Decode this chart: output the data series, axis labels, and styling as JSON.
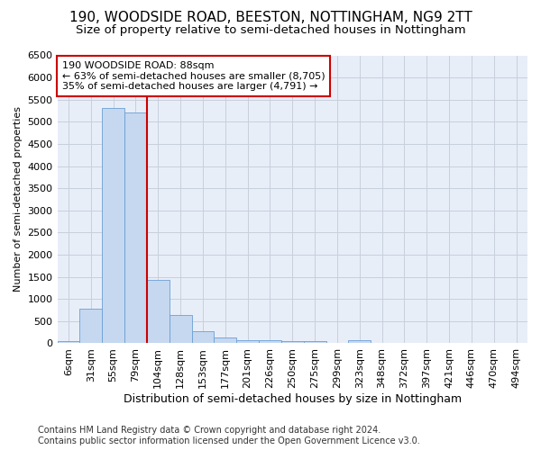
{
  "title": "190, WOODSIDE ROAD, BEESTON, NOTTINGHAM, NG9 2TT",
  "subtitle": "Size of property relative to semi-detached houses in Nottingham",
  "xlabel": "Distribution of semi-detached houses by size in Nottingham",
  "ylabel": "Number of semi-detached properties",
  "categories": [
    "6sqm",
    "31sqm",
    "55sqm",
    "79sqm",
    "104sqm",
    "128sqm",
    "153sqm",
    "177sqm",
    "201sqm",
    "226sqm",
    "250sqm",
    "275sqm",
    "299sqm",
    "323sqm",
    "348sqm",
    "372sqm",
    "397sqm",
    "421sqm",
    "446sqm",
    "470sqm",
    "494sqm"
  ],
  "values": [
    50,
    790,
    5310,
    5200,
    1430,
    630,
    265,
    130,
    80,
    65,
    55,
    50,
    0,
    70,
    0,
    0,
    0,
    0,
    0,
    0,
    0
  ],
  "bar_color": "#c5d8f0",
  "bar_edge_color": "#6b9fd4",
  "vline_color": "#cc0000",
  "annotation_line1": "190 WOODSIDE ROAD: 88sqm",
  "annotation_line2": "← 63% of semi-detached houses are smaller (8,705)",
  "annotation_line3": "35% of semi-detached houses are larger (4,791) →",
  "annotation_box_color": "#ffffff",
  "annotation_box_edge": "#cc0000",
  "ylim": [
    0,
    6500
  ],
  "yticks": [
    0,
    500,
    1000,
    1500,
    2000,
    2500,
    3000,
    3500,
    4000,
    4500,
    5000,
    5500,
    6000,
    6500
  ],
  "footer": "Contains HM Land Registry data © Crown copyright and database right 2024.\nContains public sector information licensed under the Open Government Licence v3.0.",
  "bg_color": "#ffffff",
  "plot_bg_color": "#e8eef8",
  "grid_color": "#c8d0dc",
  "title_fontsize": 11,
  "subtitle_fontsize": 9.5,
  "xlabel_fontsize": 9,
  "ylabel_fontsize": 8,
  "tick_fontsize": 8,
  "annotation_fontsize": 8,
  "footer_fontsize": 7
}
